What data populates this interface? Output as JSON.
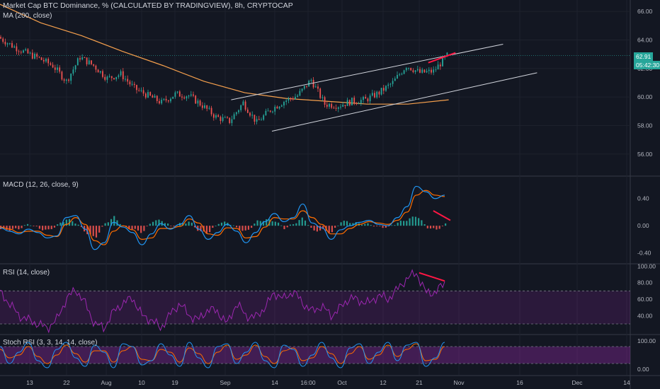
{
  "header": {
    "title": "Market Cap BTC Dominance, % (CALCULATED BY TRADINGVIEW), 8h, CRYPTOCAP",
    "ma_label": "MA (200, close)"
  },
  "price_tags": {
    "last": "62.91",
    "countdown": "05:42:30"
  },
  "colors": {
    "background": "#131722",
    "up": "#26a69a",
    "down": "#ef5350",
    "ma": "#f6a04d",
    "macd": "#2196f3",
    "signal": "#ff6d00",
    "rsi": "#9c27b0",
    "channel": "#d1d4dc",
    "divergence": "#ff1744"
  },
  "x_axis": {
    "ticks": [
      "13",
      "22",
      "Aug",
      "10",
      "19",
      "Sep",
      "14",
      "16:00",
      "Oct",
      "12",
      "21",
      "Nov",
      "16",
      "Dec",
      "14"
    ]
  },
  "chart_data": [
    {
      "type": "candlestick",
      "title": "Market Cap BTC Dominance, % (CALCULATED BY TRADINGVIEW), 8h, CRYPTOCAP",
      "ylim": [
        54.5,
        66.8
      ],
      "yticks": [
        "66.00",
        "64.00",
        "62.00",
        "60.00",
        "58.00",
        "56.00"
      ],
      "last_value": 62.91,
      "close_path": [
        [
          0,
          64.2
        ],
        [
          2,
          63.6
        ],
        [
          4,
          63.1
        ],
        [
          6,
          62.7
        ],
        [
          8,
          62.2
        ],
        [
          10,
          61.1
        ],
        [
          12,
          62.8
        ],
        [
          14,
          62.2
        ],
        [
          16,
          61.3
        ],
        [
          18,
          61.6
        ],
        [
          20,
          60.6
        ],
        [
          22,
          60.1
        ],
        [
          24,
          59.6
        ],
        [
          26,
          60.2
        ],
        [
          28,
          60.1
        ],
        [
          30,
          59.4
        ],
        [
          32,
          58.6
        ],
        [
          34,
          58.3
        ],
        [
          36,
          59.6
        ],
        [
          38,
          58.2
        ],
        [
          40,
          59.1
        ],
        [
          42,
          59.7
        ],
        [
          44,
          60.1
        ],
        [
          46,
          61.2
        ],
        [
          48,
          59.5
        ],
        [
          50,
          59.4
        ],
        [
          52,
          59.7
        ],
        [
          54,
          59.8
        ],
        [
          56,
          60.3
        ],
        [
          58,
          61.0
        ],
        [
          60,
          62.2
        ],
        [
          62,
          61.7
        ],
        [
          64,
          61.8
        ],
        [
          66,
          62.9
        ]
      ],
      "ma_path": [
        [
          0,
          66.5
        ],
        [
          6,
          65.2
        ],
        [
          12,
          64.3
        ],
        [
          18,
          63.2
        ],
        [
          24,
          62.2
        ],
        [
          30,
          61.1
        ],
        [
          36,
          60.3
        ],
        [
          42,
          59.9
        ],
        [
          48,
          59.7
        ],
        [
          54,
          59.5
        ],
        [
          60,
          59.5
        ],
        [
          66,
          59.8
        ]
      ],
      "ma_label": "MA (200, close)",
      "channel": {
        "upper": [
          [
            34,
            59.8
          ],
          [
            74,
            63.7
          ]
        ],
        "lower": [
          [
            40,
            57.6
          ],
          [
            79,
            61.7
          ]
        ]
      },
      "divergence_line": [
        [
          63,
          62.4
        ],
        [
          67,
          63.1
        ]
      ]
    },
    {
      "type": "line",
      "title": "MACD (12, 26, close, 9)",
      "ylim": [
        -0.55,
        0.72
      ],
      "yticks": [
        "0.40",
        "0.00",
        "-0.40"
      ],
      "series": [
        {
          "name": "MACD",
          "values": [
            -0.03,
            -0.08,
            -0.12,
            -0.05,
            -0.1,
            -0.18,
            -0.15,
            0.12,
            0.15,
            -0.05,
            -0.35,
            -0.25,
            0.05,
            -0.02,
            -0.1,
            -0.28,
            -0.12,
            0.03,
            -0.05,
            0.02,
            0.15,
            -0.05,
            -0.2,
            -0.1,
            0.02,
            -0.08,
            -0.25,
            -0.1,
            0.06,
            0.18,
            0.06,
            0.12,
            0.32,
            0.04,
            -0.03,
            -0.2,
            -0.06,
            0.0,
            0.05,
            0.08,
            0.02,
            0.0,
            0.12,
            0.28,
            0.58,
            0.5,
            0.4,
            0.45
          ]
        },
        {
          "name": "Signal",
          "values": [
            -0.02,
            -0.05,
            -0.1,
            -0.08,
            -0.08,
            -0.14,
            -0.16,
            0.02,
            0.12,
            0.02,
            -0.22,
            -0.28,
            -0.08,
            0.0,
            -0.06,
            -0.2,
            -0.18,
            -0.04,
            -0.04,
            -0.01,
            0.1,
            0.04,
            -0.12,
            -0.14,
            -0.03,
            -0.04,
            -0.18,
            -0.16,
            -0.02,
            0.12,
            0.1,
            0.1,
            0.22,
            0.12,
            0.02,
            -0.12,
            -0.12,
            -0.04,
            0.02,
            0.06,
            0.04,
            0.02,
            0.08,
            0.2,
            0.45,
            0.52,
            0.45,
            0.43
          ]
        }
      ],
      "histogram": [
        -0.05,
        -0.06,
        -0.04,
        0.03,
        -0.04,
        -0.07,
        0.01,
        0.1,
        0.04,
        -0.1,
        -0.18,
        0.03,
        0.13,
        -0.02,
        -0.05,
        -0.1,
        0.07,
        0.08,
        -0.01,
        0.03,
        0.06,
        -0.09,
        -0.1,
        0.04,
        0.05,
        -0.04,
        -0.09,
        0.06,
        0.09,
        0.07,
        -0.04,
        0.03,
        0.12,
        -0.08,
        -0.06,
        -0.1,
        0.07,
        0.05,
        0.03,
        0.02,
        -0.02,
        -0.02,
        0.05,
        0.09,
        0.15,
        -0.02,
        -0.06,
        0.02
      ],
      "divergence_line": [
        [
          0.6875,
          0.22
        ],
        [
          0.755,
          0.08
        ]
      ]
    },
    {
      "type": "line",
      "title": "RSI (14, close)",
      "ylim": [
        18,
        102
      ],
      "yticks": [
        "100.00",
        "80.00",
        "60.00",
        "40.00"
      ],
      "bands": [
        30,
        70
      ],
      "series": [
        {
          "name": "RSI",
          "values": [
            68,
            55,
            40,
            35,
            30,
            25,
            35,
            60,
            72,
            55,
            30,
            25,
            45,
            55,
            62,
            40,
            35,
            25,
            42,
            55,
            40,
            35,
            48,
            45,
            30,
            55,
            40,
            38,
            50,
            68,
            60,
            70,
            55,
            45,
            52,
            40,
            50,
            62,
            58,
            55,
            65,
            60,
            72,
            85,
            92,
            68,
            68,
            80
          ]
        }
      ],
      "divergence_line": [
        [
          0.6875,
          92
        ],
        [
          0.755,
          82
        ]
      ]
    },
    {
      "type": "line",
      "title": "Stoch RSI (3, 3, 14, 14, close)",
      "ylim": [
        -20,
        120
      ],
      "yticks": [
        "100.00",
        "0.00"
      ],
      "bands": [
        20,
        80
      ],
      "series": [
        {
          "name": "K",
          "values": [
            80,
            20,
            60,
            95,
            30,
            5,
            70,
            95,
            40,
            10,
            85,
            60,
            5,
            90,
            80,
            15,
            30,
            90,
            50,
            10,
            95,
            40,
            5,
            80,
            90,
            20,
            60,
            95,
            30,
            5,
            85,
            70,
            10,
            50,
            95,
            40,
            5,
            75,
            90,
            20,
            60,
            95,
            30,
            85,
            95,
            10,
            40,
            95
          ]
        },
        {
          "name": "D",
          "values": [
            70,
            40,
            50,
            80,
            45,
            20,
            50,
            85,
            55,
            25,
            65,
            65,
            25,
            65,
            80,
            35,
            30,
            70,
            60,
            25,
            75,
            55,
            20,
            60,
            85,
            35,
            50,
            85,
            45,
            20,
            65,
            75,
            30,
            40,
            80,
            55,
            20,
            55,
            80,
            35,
            50,
            85,
            45,
            70,
            90,
            30,
            35,
            80
          ]
        }
      ]
    }
  ]
}
